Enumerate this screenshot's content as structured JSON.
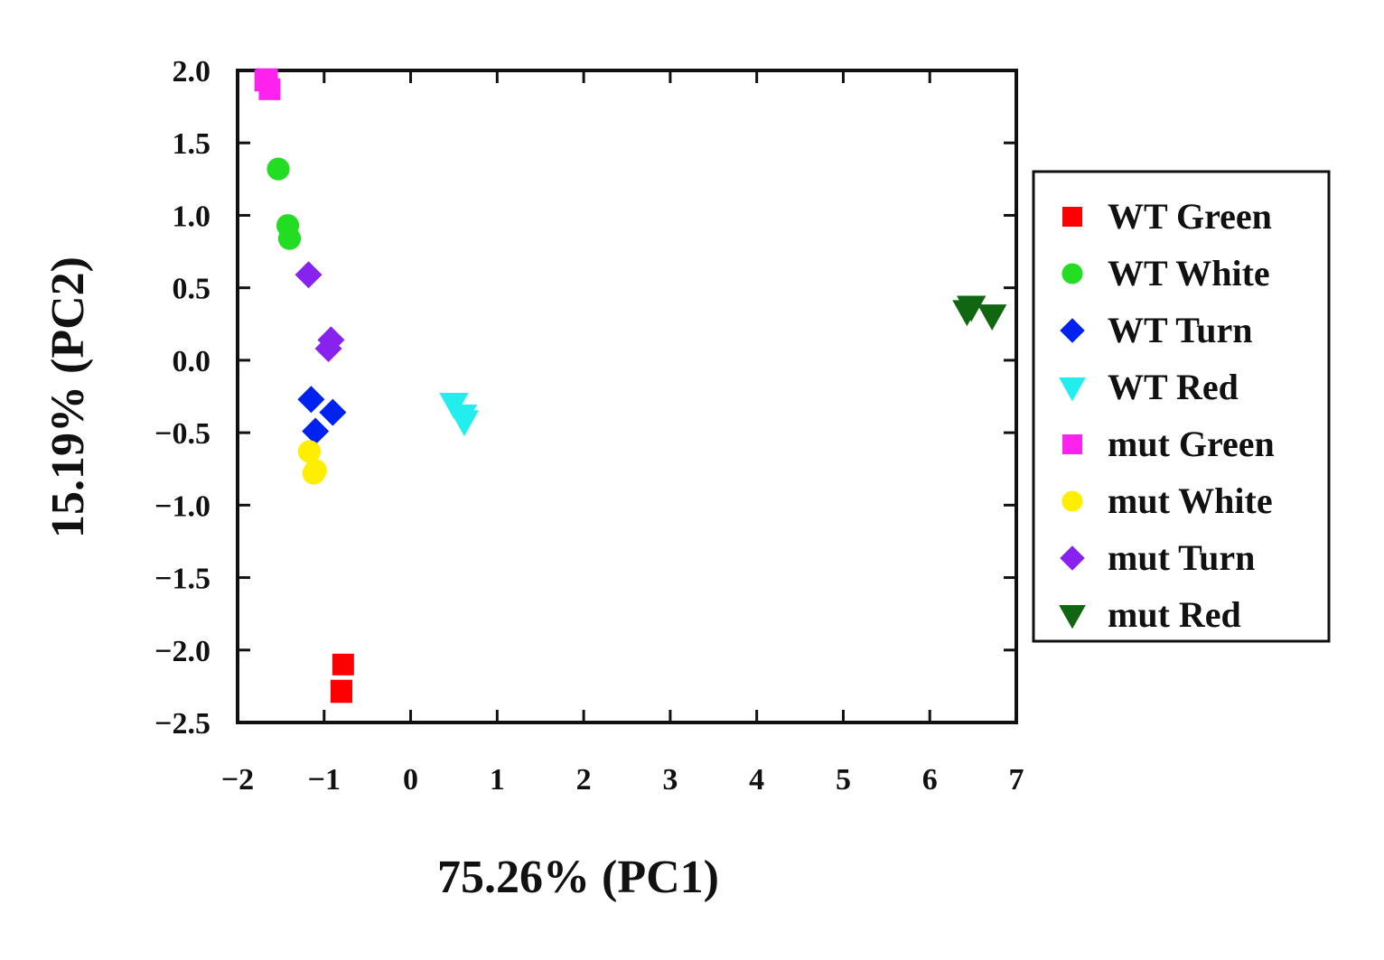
{
  "chart_data": {
    "type": "scatter",
    "title": "",
    "xlabel": "75.26% (PC1)",
    "ylabel": "15.19% (PC2)",
    "xlim": [
      -2,
      7
    ],
    "ylim": [
      -2.5,
      2.0
    ],
    "x_ticks": [
      -2,
      -1,
      0,
      1,
      2,
      3,
      4,
      5,
      6,
      7
    ],
    "x_tick_labels": [
      "−2",
      "−1",
      "0",
      "1",
      "2",
      "3",
      "4",
      "5",
      "6",
      "7"
    ],
    "y_ticks": [
      2.0,
      1.5,
      1.0,
      0.5,
      0.0,
      -0.5,
      -1.0,
      -1.5,
      -2.0,
      -2.5
    ],
    "y_tick_labels": [
      "2.0",
      "1.5",
      "1.0",
      "0.5",
      "0.0",
      "−0.5",
      "−1.0",
      "−1.5",
      "−2.0",
      "−2.5"
    ],
    "grid": false,
    "legend_position": "right",
    "series": [
      {
        "name": "WT Green",
        "marker": "square",
        "color": "#ff0000",
        "points": [
          [
            -0.78,
            -2.1
          ],
          [
            -0.8,
            -2.29
          ],
          [
            -0.8,
            -2.28
          ]
        ]
      },
      {
        "name": "WT White",
        "marker": "circle",
        "color": "#22dd22",
        "points": [
          [
            -1.53,
            1.32
          ],
          [
            -1.42,
            0.93
          ],
          [
            -1.4,
            0.84
          ]
        ]
      },
      {
        "name": "WT Turn",
        "marker": "diamond",
        "color": "#0022ee",
        "points": [
          [
            -1.15,
            -0.27
          ],
          [
            -0.9,
            -0.36
          ],
          [
            -1.1,
            -0.49
          ]
        ]
      },
      {
        "name": "WT Red",
        "marker": "triangle-down",
        "color": "#22eeee",
        "points": [
          [
            0.5,
            -0.3
          ],
          [
            0.6,
            -0.38
          ],
          [
            0.62,
            -0.42
          ]
        ]
      },
      {
        "name": "mut Green",
        "marker": "square",
        "color": "#ff22ee",
        "points": [
          [
            -1.66,
            1.94
          ],
          [
            -1.63,
            1.87
          ],
          [
            -1.68,
            1.93
          ]
        ]
      },
      {
        "name": "mut White",
        "marker": "circle",
        "color": "#ffee00",
        "points": [
          [
            -1.17,
            -0.63
          ],
          [
            -1.12,
            -0.78
          ],
          [
            -1.1,
            -0.76
          ]
        ]
      },
      {
        "name": "mut Turn",
        "marker": "diamond",
        "color": "#8822ee",
        "points": [
          [
            -1.18,
            0.59
          ],
          [
            -0.92,
            0.14
          ],
          [
            -0.95,
            0.08
          ]
        ]
      },
      {
        "name": "mut Red",
        "marker": "triangle-down",
        "color": "#116611",
        "points": [
          [
            6.48,
            0.37
          ],
          [
            6.43,
            0.34
          ],
          [
            6.72,
            0.31
          ]
        ]
      }
    ]
  }
}
